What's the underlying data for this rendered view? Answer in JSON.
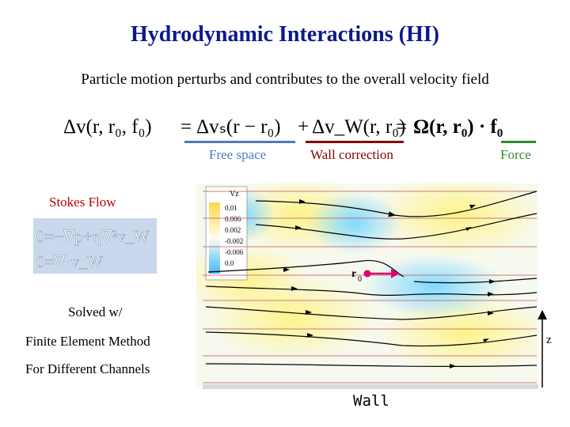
{
  "title": "Hydrodynamic Interactions (HI)",
  "subtitle": "Particle motion perturbs and contributes to the overall velocity field",
  "equation": {
    "lhs": "Δv(r, r₀, f₀)",
    "free_space_term": "Δvₛ(r − r₀)",
    "wall_term": "Δv_W(r, r₀)",
    "omega_term": "Ω(r, r₀) · f₀"
  },
  "labels": {
    "free_space": "Free space",
    "wall_correction": "Wall correction",
    "force": "Force"
  },
  "colors": {
    "title": "#0a1a8c",
    "free_space_line": "#4a7cc4",
    "wall_line": "#8b0000",
    "force_line": "#2e8b2e",
    "stokes_flow": "#c00000",
    "particle": "#e0006e"
  },
  "stokes": {
    "heading": "Stokes Flow",
    "eq1": "0=−∇p+η∇²v_W",
    "eq2": "0=∇·v_W"
  },
  "method": {
    "solved": "Solved w/",
    "fem": "Finite Element Method",
    "channels": "For Different Channels"
  },
  "plot": {
    "legend_title": "Vz",
    "legend_ticks": [
      "0.01",
      "0.006",
      "0.002",
      "-0.002",
      "-0.006",
      "0.0"
    ],
    "particle_label": "r",
    "particle_sub": "0",
    "wall_label": "Wall",
    "axis_label": "z"
  }
}
